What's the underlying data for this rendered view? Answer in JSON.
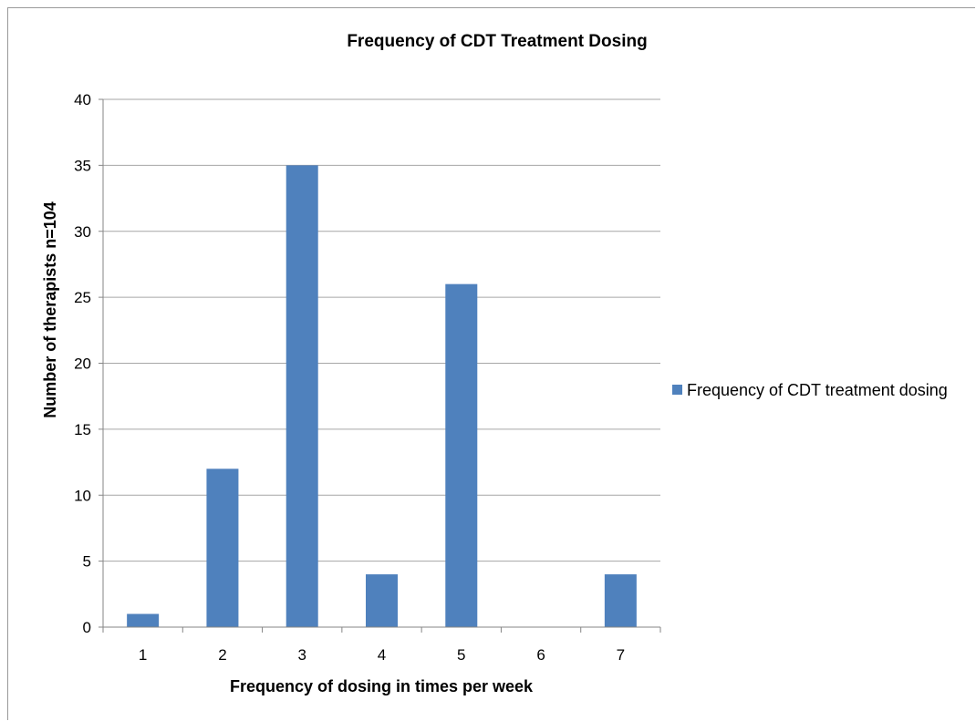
{
  "chart_data": {
    "type": "bar",
    "title": "Frequency  of CDT Treatment Dosing",
    "xlabel": "Frequency of dosing in times per week",
    "ylabel": "Number of therapists n=104",
    "categories": [
      "1",
      "2",
      "3",
      "4",
      "5",
      "6",
      "7"
    ],
    "series": [
      {
        "name": "Frequency of CDT treatment dosing",
        "values": [
          1,
          12,
          35,
          4,
          26,
          0,
          4
        ],
        "color": "#4f81bd"
      }
    ],
    "ylim": [
      0,
      40
    ],
    "yticks": [
      "0",
      "5",
      "10",
      "15",
      "20",
      "25",
      "30",
      "35",
      "40"
    ],
    "grid": true,
    "legend_position": "right"
  }
}
